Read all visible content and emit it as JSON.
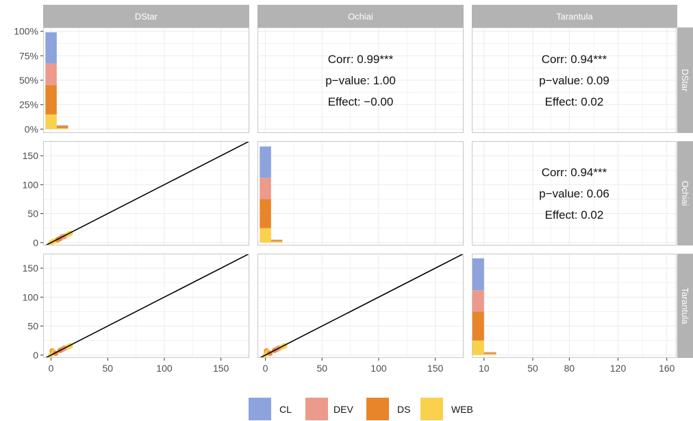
{
  "chart_data": {
    "type": "pair-matrix",
    "variables": [
      "DStar",
      "Ochiai",
      "Tarantula"
    ],
    "legend": {
      "position": "bottom",
      "entries": [
        {
          "name": "CL",
          "color": "#8DA3DD"
        },
        {
          "name": "DEV",
          "color": "#EC9A8C"
        },
        {
          "name": "DS",
          "color": "#E8852A"
        },
        {
          "name": "WEB",
          "color": "#F9D14D"
        }
      ]
    },
    "axes": {
      "hist_top_y": {
        "ticks": [
          "0%",
          "25%",
          "50%",
          "75%",
          "100%"
        ],
        "values": [
          0,
          25,
          50,
          75,
          100
        ],
        "range": [
          -4,
          104
        ]
      },
      "scatter_y": {
        "ticks": [
          "0",
          "50",
          "100",
          "150"
        ],
        "values": [
          0,
          50,
          100,
          150
        ],
        "range": [
          -5,
          175
        ]
      },
      "x_dstar": {
        "ticks": [
          "0",
          "50",
          "100",
          "150"
        ],
        "values": [
          0,
          50,
          100,
          150
        ],
        "range": [
          -7,
          175
        ]
      },
      "x_ochiai": {
        "ticks": [
          "0",
          "50",
          "100",
          "150"
        ],
        "values": [
          0,
          50,
          100,
          150
        ],
        "range": [
          -7,
          175
        ]
      },
      "x_tarantula": {
        "ticks": [
          "10",
          "50",
          "80",
          "120",
          "160"
        ],
        "values": [
          10,
          50,
          80,
          120,
          160
        ],
        "range": [
          0,
          168
        ]
      }
    },
    "histograms": [
      {
        "panel": "DStar",
        "bins": [
          {
            "x0": -5,
            "x1": 5,
            "stack": {
              "WEB": 15,
              "DS": 30,
              "DEV": 22,
              "CL": 32
            }
          },
          {
            "x0": 5,
            "x1": 15,
            "stack": {
              "WEB": 1,
              "DS": 2,
              "DEV": 0.5,
              "CL": 0.5
            }
          }
        ]
      },
      {
        "panel": "Ochiai",
        "bins": [
          {
            "x0": -5,
            "x1": 5,
            "stack": {
              "WEB": 25,
              "DS": 50,
              "DEV": 37,
              "CL": 54
            }
          },
          {
            "x0": 5,
            "x1": 15,
            "stack": {
              "WEB": 2,
              "DS": 2,
              "DEV": 0.5,
              "CL": 0.5
            }
          }
        ]
      },
      {
        "panel": "Tarantula",
        "bins": [
          {
            "x0": 0,
            "x1": 10,
            "stack": {
              "WEB": 25,
              "DS": 50,
              "DEV": 37,
              "CL": 55
            }
          },
          {
            "x0": 10,
            "x1": 20,
            "stack": {
              "WEB": 2,
              "DS": 2,
              "DEV": 0.5,
              "CL": 0.5
            }
          }
        ]
      }
    ],
    "scatters": [
      {
        "row": "Ochiai",
        "col": "DStar",
        "line": [
          [
            -7,
            -7
          ],
          [
            175,
            175
          ]
        ],
        "points": [
          {
            "g": "WEB",
            "x": 0,
            "y": 0
          },
          {
            "g": "WEB",
            "x": 2,
            "y": 2
          },
          {
            "g": "WEB",
            "x": 4,
            "y": 3
          },
          {
            "g": "DS",
            "x": 6,
            "y": 5
          },
          {
            "g": "DS",
            "x": 8,
            "y": 7
          },
          {
            "g": "DS",
            "x": 10,
            "y": 10
          },
          {
            "g": "DS",
            "x": 12,
            "y": 11
          },
          {
            "g": "WEB",
            "x": 14,
            "y": 13
          },
          {
            "g": "WEB",
            "x": 16,
            "y": 15
          },
          {
            "g": "DEV",
            "x": 11,
            "y": 10
          },
          {
            "g": "WEB",
            "x": 17,
            "y": 16
          }
        ]
      },
      {
        "row": "Tarantula",
        "col": "DStar",
        "line": [
          [
            -7,
            -7
          ],
          [
            175,
            175
          ]
        ],
        "points": [
          {
            "g": "WEB",
            "x": 0,
            "y": 0
          },
          {
            "g": "DS",
            "x": 1,
            "y": 7
          },
          {
            "g": "WEB",
            "x": 2,
            "y": 5
          },
          {
            "g": "DS",
            "x": 4,
            "y": 3
          },
          {
            "g": "DS",
            "x": 8,
            "y": 8
          },
          {
            "g": "DS",
            "x": 10,
            "y": 10
          },
          {
            "g": "DS",
            "x": 12,
            "y": 12
          },
          {
            "g": "WEB",
            "x": 14,
            "y": 13
          },
          {
            "g": "WEB",
            "x": 16,
            "y": 15
          },
          {
            "g": "DEV",
            "x": 11,
            "y": 11
          },
          {
            "g": "WEB",
            "x": 17,
            "y": 16
          }
        ]
      },
      {
        "row": "Tarantula",
        "col": "Ochiai",
        "line": [
          [
            -7,
            -7
          ],
          [
            175,
            175
          ]
        ],
        "points": [
          {
            "g": "WEB",
            "x": 0,
            "y": 0
          },
          {
            "g": "DS",
            "x": 1,
            "y": 7
          },
          {
            "g": "WEB",
            "x": 2,
            "y": 5
          },
          {
            "g": "DS",
            "x": 4,
            "y": 3
          },
          {
            "g": "DS",
            "x": 8,
            "y": 8
          },
          {
            "g": "DS",
            "x": 10,
            "y": 10
          },
          {
            "g": "DS",
            "x": 12,
            "y": 12
          },
          {
            "g": "WEB",
            "x": 14,
            "y": 13
          },
          {
            "g": "WEB",
            "x": 16,
            "y": 15
          },
          {
            "g": "DEV",
            "x": 11,
            "y": 11
          },
          {
            "g": "WEB",
            "x": 17,
            "y": 16
          }
        ]
      }
    ],
    "correlations": [
      {
        "row": "DStar",
        "col": "Ochiai",
        "corr": "Corr: 0.99***",
        "pvalue": "p−value: 1.00",
        "effect": "Effect: −0.00"
      },
      {
        "row": "DStar",
        "col": "Tarantula",
        "corr": "Corr: 0.94***",
        "pvalue": "p−value: 0.09",
        "effect": "Effect: 0.02"
      },
      {
        "row": "Ochiai",
        "col": "Tarantula",
        "corr": "Corr: 0.94***",
        "pvalue": "p−value: 0.06",
        "effect": "Effect: 0.02"
      }
    ]
  }
}
